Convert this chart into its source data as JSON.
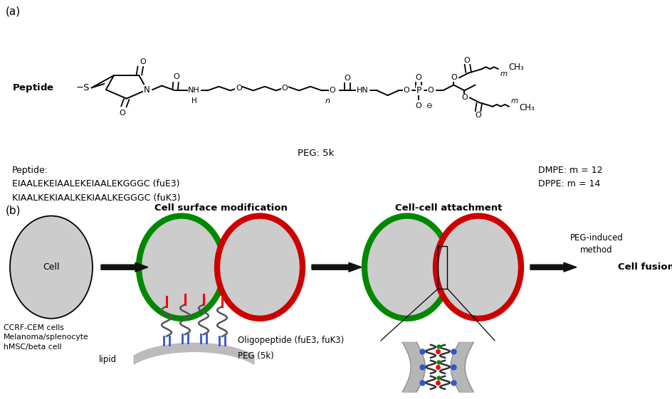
{
  "panel_a_label": "(a)",
  "panel_b_label": "(b)",
  "peg_label": "PEG: 5k",
  "peptide_label": "Peptide:",
  "peptide_seq1": "EIAALEKEIAALEKEIAALEKGGGC (fuE3)",
  "peptide_seq2": "KIAALKEKIAALKEKIAALKEGGGC (fuK3)",
  "dmpe_label": "DMPE: m = 12",
  "dppe_label": "DPPE: m = 14",
  "cell_surface_title": "Cell surface modification",
  "cell_cell_title": "Cell-cell attachment",
  "cell_label": "Cell",
  "cell_types": "CCRF-CEM cells\nMelanoma/splenocyte\nhMSC/beta cell",
  "oligopeptide_label": "Oligopeptide (fuE3, fuK3)",
  "peg_5k_label": "PEG (5k)",
  "lipid_label": "lipid",
  "peg_induced_label": "PEG-induced\nmethod",
  "cell_fusion_label": "Cell fusion",
  "bg_color": "#ffffff",
  "green_color": "#008800",
  "red_color": "#cc0000",
  "gray_color": "#cccccc",
  "arrow_color": "#111111",
  "blue_color": "#3355cc"
}
